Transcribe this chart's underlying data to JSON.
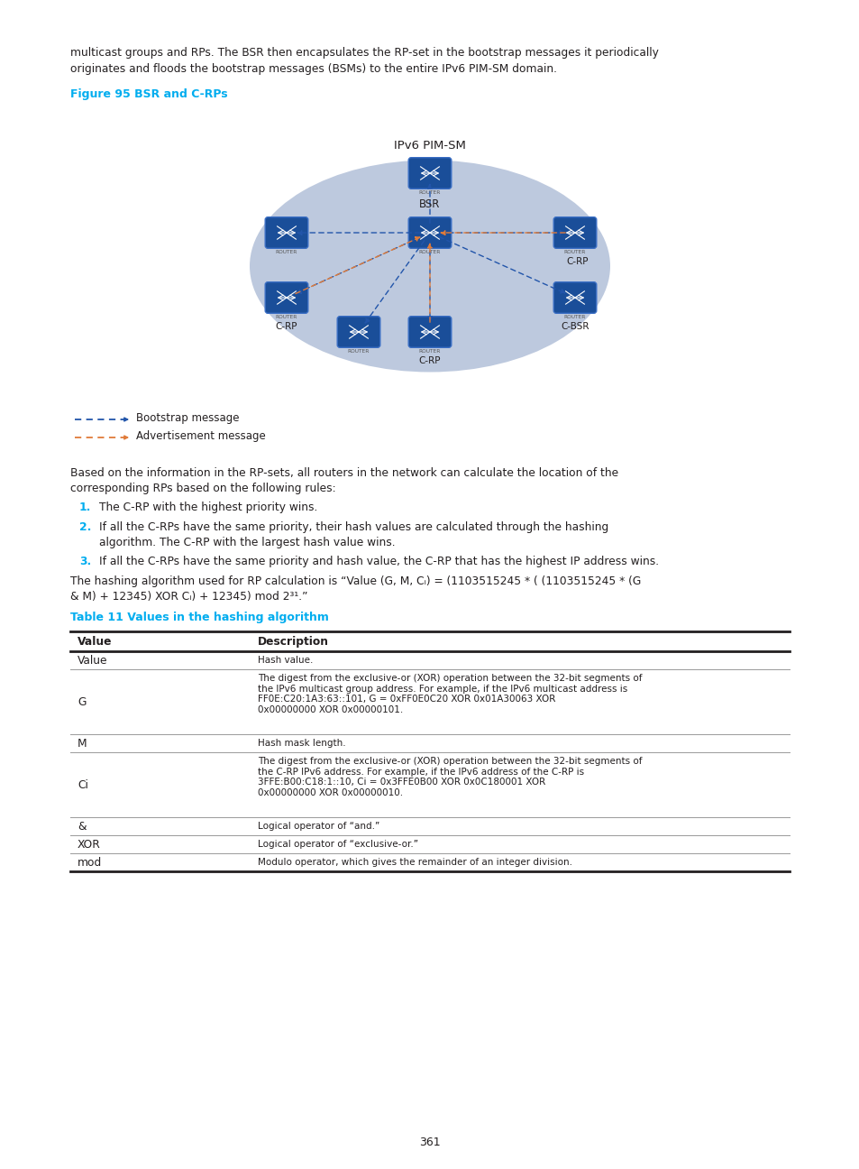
{
  "background_color": "#ffffff",
  "text_color": "#231f20",
  "cyan_color": "#00adef",
  "figure_caption": "Figure 95 BSR and C-RPs",
  "intro_text1": "multicast groups and RPs. The BSR then encapsulates the RP-set in the bootstrap messages it periodically",
  "intro_text2": "originates and floods the bootstrap messages (BSMs) to the entire IPv6 PIM-SM domain.",
  "para1a": "Based on the information in the RP-sets, all routers in the network can calculate the location of the",
  "para1b": "corresponding RPs based on the following rules:",
  "list1": "The C-RP with the highest priority wins.",
  "list2a": "If all the C-RPs have the same priority, their hash values are calculated through the hashing",
  "list2b": "algorithm. The C-RP with the largest hash value wins.",
  "list3": "If all the C-RPs have the same priority and hash value, the C-RP that has the highest IP address wins.",
  "hash_para1": "The hashing algorithm used for RP calculation is “Value (G, M, Cᵢ) = (1103515245 * ( (1103515245 * (G",
  "hash_para2": "& M) + 12345) XOR Cᵢ) + 12345) mod 2³¹.”",
  "table_title": "Table 11 Values in the hashing algorithm",
  "table_headers": [
    "Value",
    "Description"
  ],
  "table_rows": [
    [
      "Value",
      "Hash value."
    ],
    [
      "G",
      "The digest from the exclusive-or (XOR) operation between the 32-bit segments of\nthe IPv6 multicast group address. For example, if the IPv6 multicast address is\nFF0E:C20:1A3:63::101, G = 0xFF0E0C20 XOR 0x01A30063 XOR\n0x00000000 XOR 0x00000101."
    ],
    [
      "M",
      "Hash mask length."
    ],
    [
      "Ci",
      "The digest from the exclusive-or (XOR) operation between the 32-bit segments of\nthe C-RP IPv6 address. For example, if the IPv6 address of the C-RP is\n3FFE:B00:C18:1::10, Ci = 0x3FFE0B00 XOR 0x0C180001 XOR\n0x00000000 XOR 0x00000010."
    ],
    [
      "&",
      "Logical operator of “and.”"
    ],
    [
      "XOR",
      "Logical operator of “exclusive-or.”"
    ],
    [
      "mod",
      "Modulo operator, which gives the remainder of an integer division."
    ]
  ],
  "page_number": "361",
  "ellipse_color": "#bdc9de",
  "ipv6_label": "IPv6 PIM-SM",
  "bootstrap_color": "#2255aa",
  "advertisement_color": "#e07b39",
  "crp_label": "C-RP",
  "cbsr_label": "C-BSR",
  "bsr_label": "BSR",
  "legend_bootstrap": "Bootstrap message",
  "legend_advertisement": "Advertisement message"
}
